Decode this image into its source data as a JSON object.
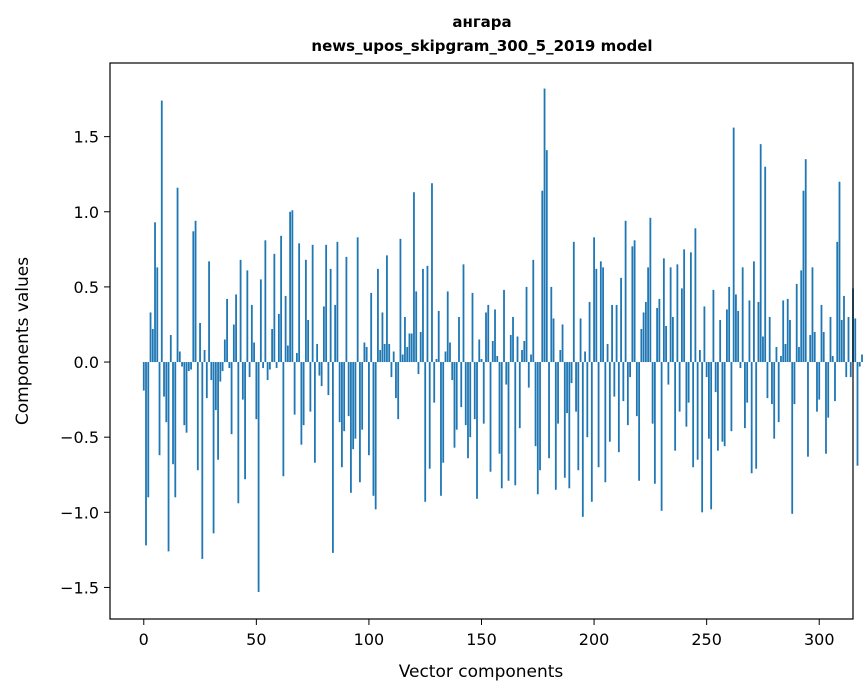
{
  "chart_data": {
    "type": "bar",
    "title_line1": "ангара",
    "title_line2": "news_upos_skipgram_300_5_2019 model",
    "xlabel": "Vector components",
    "ylabel": "Components values",
    "xlim": [
      -15,
      315
    ],
    "ylim": [
      -1.71,
      1.99
    ],
    "xticks": [
      0,
      50,
      100,
      150,
      200,
      250,
      300
    ],
    "xtick_labels": [
      "0",
      "50",
      "100",
      "150",
      "200",
      "250",
      "300"
    ],
    "yticks": [
      -1.5,
      -1.0,
      -0.5,
      0.0,
      0.5,
      1.0,
      1.5
    ],
    "ytick_labels": [
      "−1.5",
      "−1.0",
      "−0.5",
      "0.0",
      "0.5",
      "1.0",
      "1.5"
    ],
    "bar_color": "#1f77b4",
    "grid": false,
    "values": [
      -0.19,
      -1.22,
      -0.9,
      0.33,
      0.22,
      0.93,
      0.63,
      -0.62,
      1.74,
      -0.23,
      -0.4,
      -1.26,
      0.18,
      -0.68,
      -0.9,
      1.16,
      0.07,
      -0.03,
      -0.42,
      -0.47,
      -0.06,
      -0.05,
      0.87,
      0.94,
      -0.72,
      0.26,
      -1.31,
      0.08,
      -0.24,
      0.67,
      -0.12,
      -1.14,
      -0.32,
      -0.65,
      -0.13,
      -0.06,
      0.15,
      0.42,
      -0.04,
      -0.48,
      0.25,
      0.45,
      -0.94,
      0.68,
      -0.25,
      -0.78,
      0.61,
      -0.1,
      0.38,
      0.13,
      -0.38,
      -1.53,
      0.55,
      -0.04,
      0.81,
      -0.12,
      -0.05,
      0.22,
      0.72,
      -0.04,
      0.32,
      0.84,
      -0.76,
      0.44,
      0.11,
      1.0,
      1.01,
      -0.35,
      0.06,
      0.79,
      -0.55,
      -0.42,
      0.68,
      0.28,
      -0.33,
      0.78,
      -0.67,
      0.12,
      -0.09,
      -0.16,
      0.37,
      0.78,
      -0.22,
      0.62,
      -1.27,
      0.38,
      0.8,
      -0.4,
      -0.7,
      -0.46,
      0.7,
      -0.36,
      -0.87,
      -0.58,
      -0.51,
      0.83,
      -0.8,
      -0.45,
      0.13,
      0.1,
      -0.62,
      0.46,
      -0.89,
      -0.98,
      0.62,
      0.08,
      0.33,
      0.12,
      0.71,
      0.12,
      -0.1,
      0.07,
      -0.24,
      -0.38,
      0.82,
      0.05,
      0.3,
      0.1,
      0.19,
      0.19,
      1.13,
      0.47,
      -0.08,
      0.2,
      0.62,
      -0.93,
      0.64,
      -0.71,
      1.19,
      -0.27,
      0.02,
      0.34,
      -0.89,
      -0.67,
      0.07,
      0.47,
      0.13,
      -0.12,
      -0.57,
      -0.45,
      0.3,
      -0.3,
      0.65,
      -0.42,
      -0.64,
      -0.5,
      0.46,
      -0.38,
      -0.91,
      0.15,
      0.02,
      -0.41,
      0.33,
      0.38,
      -0.73,
      0.14,
      0.35,
      0.04,
      -0.61,
      -0.84,
      0.48,
      -0.15,
      -0.79,
      0.18,
      0.3,
      -0.82,
      0.17,
      -0.44,
      0.08,
      0.14,
      0.5,
      -0.17,
      0.05,
      0.68,
      -0.56,
      -0.88,
      -0.72,
      1.14,
      1.82,
      1.41,
      -0.64,
      0.5,
      0.29,
      -0.85,
      -0.41,
      0.08,
      0.25,
      -0.77,
      -0.34,
      -0.84,
      -0.14,
      0.8,
      -0.33,
      -0.72,
      0.29,
      -1.03,
      0.07,
      -0.5,
      0.4,
      -0.93,
      0.83,
      0.62,
      -0.7,
      0.67,
      0.63,
      -0.8,
      0.12,
      -0.53,
      0.38,
      -0.23,
      0.38,
      -0.6,
      0.56,
      -0.26,
      0.94,
      -0.42,
      -0.1,
      0.77,
      0.81,
      -0.36,
      -0.79,
      0.22,
      0.33,
      0.4,
      0.63,
      0.96,
      -0.41,
      -0.81,
      0.36,
      0.42,
      -0.99,
      0.69,
      0.24,
      -0.15,
      0.63,
      0.3,
      -0.59,
      0.65,
      -0.33,
      0.49,
      0.75,
      -0.43,
      -0.27,
      0.73,
      -0.7,
      0.89,
      -0.65,
      0.08,
      -1.0,
      0.37,
      -0.1,
      -0.51,
      -0.98,
      0.48,
      -0.2,
      -0.59,
      0.28,
      -0.53,
      -0.56,
      0.35,
      0.5,
      -0.46,
      1.56,
      0.45,
      0.34,
      -0.04,
      0.63,
      -0.44,
      -0.27,
      0.41,
      -0.74,
      0.67,
      -0.71,
      0.4,
      1.45,
      0.17,
      1.3,
      -0.24,
      0.3,
      -0.28,
      -0.51,
      0.1,
      -0.4,
      0.04,
      0.41,
      0.12,
      0.42,
      0.28,
      -1.01,
      -0.28,
      0.52,
      0.1,
      0.61,
      1.14,
      1.35,
      -0.63,
      0.18,
      0.63,
      0.2,
      -0.33,
      -0.25,
      0.38,
      0.2,
      -0.61,
      -0.37,
      0.3,
      0.04,
      -0.26,
      0.8,
      1.2,
      0.28,
      0.44,
      -0.1,
      0.3,
      -0.1,
      0.49,
      0.29,
      -0.69,
      -0.03,
      0.05
    ]
  }
}
